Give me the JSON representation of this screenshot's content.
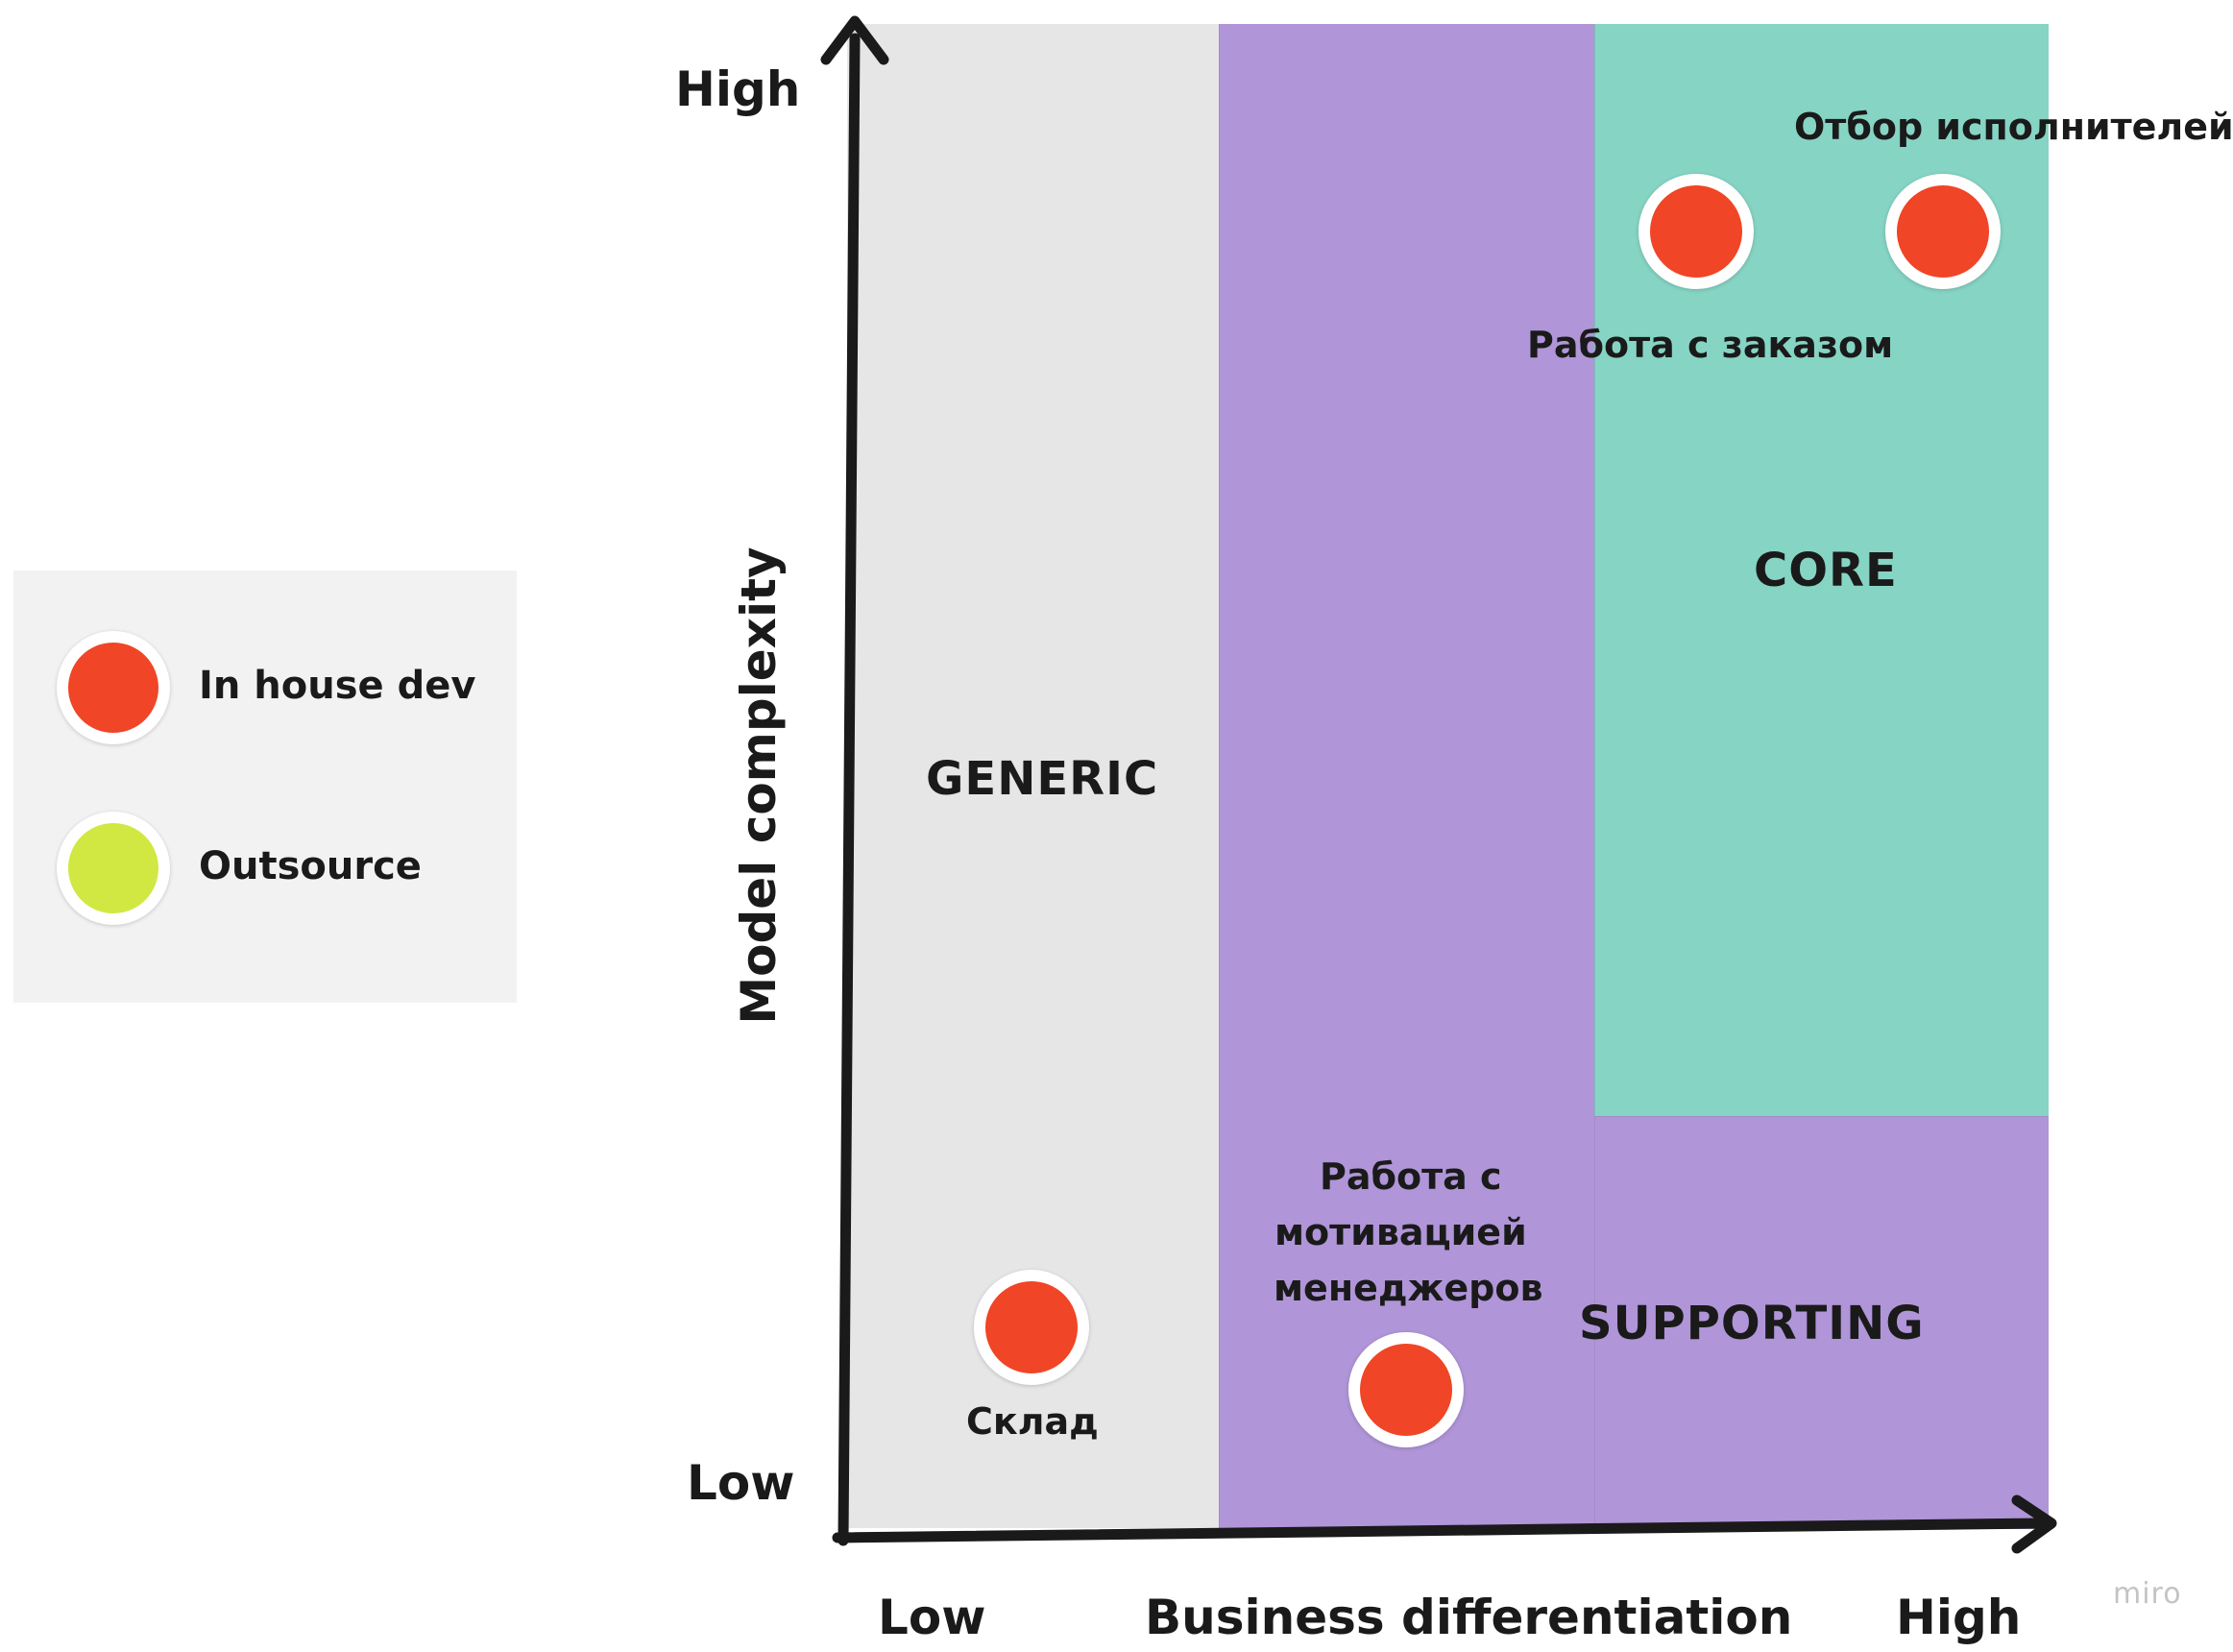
{
  "regions": {
    "generic": "GENERIC",
    "core": "CORE",
    "supporting": "SUPPORTING"
  },
  "items": {
    "otbor": "Отбор исполнителей",
    "rabota_zakaz": "Работа с заказом",
    "motivatsia_line1": "Работа с",
    "motivatsia_line2": "мотивацией",
    "motivatsia_line3": "менеджеров",
    "sklad": "Склад"
  },
  "axes": {
    "y_title": "Model complexity",
    "y_high": "High",
    "y_low": "Low",
    "x_title": "Business differentiation",
    "x_low": "Low",
    "x_high": "High"
  },
  "legend": {
    "inhouse_label": "In house dev",
    "outsource_label": "Outsource"
  },
  "colors": {
    "inhouse": "#f04526",
    "outsource": "#d1e842",
    "generic": "#e6e6e6",
    "supporting": "#b095d8",
    "core": "#86d4c4"
  },
  "watermark": "miro"
}
